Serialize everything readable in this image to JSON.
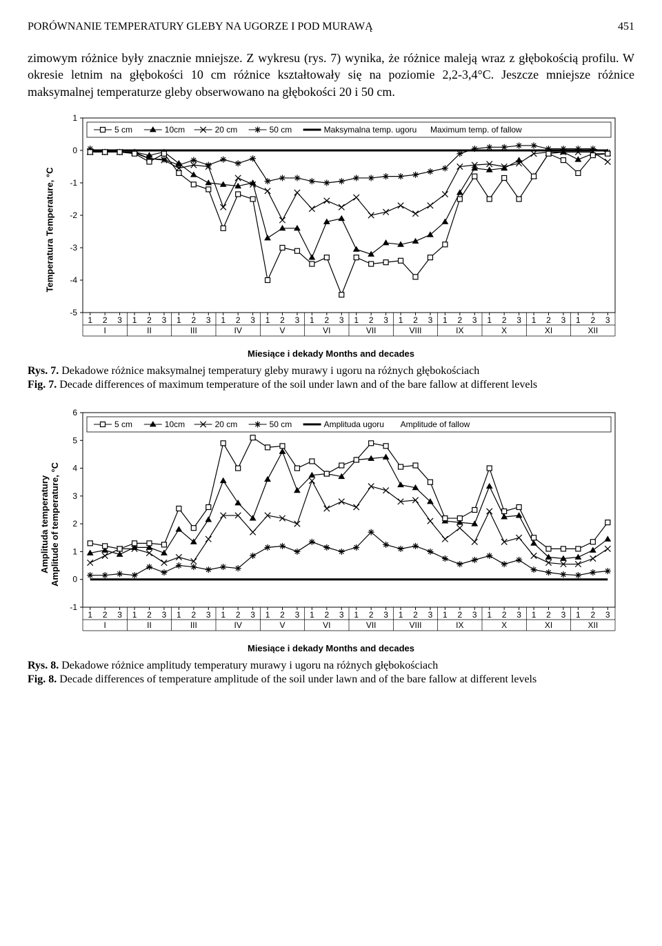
{
  "header": {
    "running_title": "PORÓWNANIE TEMPERATURY GLEBY NA UGORZE I POD MURAWĄ",
    "page_number": "451"
  },
  "paragraph": "zimowym różnice były znacznie mniejsze. Z wykresu (rys. 7) wynika, że różnice maleją wraz z głębokością profilu. W okresie letnim na głębokości 10 cm różnice kształtowały się na poziomie 2,2-3,4°C. Jeszcze mniejsze różnice maksymalnej temperaturze gleby obserwowano na głębokości 20 i 50 cm.",
  "chart7": {
    "type": "line",
    "y_label": "Temperatura Temperature, °C",
    "x_label": "Miesiące i dekady Months and decades",
    "ylim": [
      -5,
      1
    ],
    "ytick_step": 1,
    "months": [
      "I",
      "II",
      "III",
      "IV",
      "V",
      "VI",
      "VII",
      "VIII",
      "IX",
      "X",
      "XI",
      "XII"
    ],
    "decades": [
      "1",
      "2",
      "3"
    ],
    "legend": [
      {
        "label": "5 cm",
        "marker": "square",
        "color": "#000000"
      },
      {
        "label": "10cm",
        "marker": "triangle",
        "color": "#000000"
      },
      {
        "label": "20 cm",
        "marker": "x",
        "color": "#000000"
      },
      {
        "label": "50 cm",
        "marker": "star",
        "color": "#000000"
      },
      {
        "label": "Maksymalna temp. ugoru",
        "marker": "boldline",
        "color": "#000000"
      },
      {
        "label": "Maximum temp. of fallow",
        "marker": "none",
        "color": "#000000"
      }
    ],
    "line_width": 1.2,
    "bold_line_width": 3,
    "background_color": "#ffffff",
    "border_color": "#000000",
    "series": {
      "s5cm": [
        -0.05,
        -0.05,
        -0.05,
        -0.1,
        -0.35,
        -0.1,
        -0.7,
        -1.05,
        -1.2,
        -2.4,
        -1.35,
        -1.5,
        -4.0,
        -3.0,
        -3.1,
        -3.5,
        -3.3,
        -4.45,
        -3.3,
        -3.5,
        -3.45,
        -3.4,
        -3.9,
        -3.3,
        -2.9,
        -1.5,
        -0.8,
        -1.5,
        -0.85,
        -1.5,
        -0.8,
        -0.1,
        -0.3,
        -0.7,
        -0.15,
        -0.1
      ],
      "s10cm": [
        -0.05,
        -0.05,
        -0.05,
        -0.05,
        -0.15,
        -0.05,
        -0.4,
        -0.75,
        -1.0,
        -1.05,
        -1.1,
        -1.0,
        -2.7,
        -2.4,
        -2.4,
        -3.3,
        -2.2,
        -2.1,
        -3.05,
        -3.2,
        -2.85,
        -2.9,
        -2.8,
        -2.6,
        -2.2,
        -1.3,
        -0.55,
        -0.6,
        -0.55,
        -0.3,
        -0.8,
        -0.1,
        -0.05,
        -0.28,
        -0.1,
        -0.1
      ],
      "s20cm": [
        -0.05,
        -0.05,
        -0.05,
        -0.08,
        -0.25,
        -0.3,
        -0.55,
        -0.45,
        -0.5,
        -1.75,
        -0.85,
        -1.05,
        -1.25,
        -2.15,
        -1.3,
        -1.8,
        -1.55,
        -1.75,
        -1.45,
        -2.0,
        -1.9,
        -1.7,
        -1.95,
        -1.7,
        -1.35,
        -0.5,
        -0.45,
        -0.42,
        -0.5,
        -0.4,
        -0.1,
        -0.05,
        -0.05,
        -0.05,
        -0.05,
        -0.35
      ],
      "s50cm": [
        0.05,
        -0.05,
        -0.05,
        -0.05,
        -0.25,
        -0.28,
        -0.45,
        -0.3,
        -0.45,
        -0.28,
        -0.4,
        -0.25,
        -0.95,
        -0.85,
        -0.85,
        -0.95,
        -1.0,
        -0.95,
        -0.85,
        -0.85,
        -0.8,
        -0.8,
        -0.75,
        -0.65,
        -0.55,
        -0.1,
        0.05,
        0.1,
        0.1,
        0.15,
        0.15,
        0.05,
        0.05,
        0.05,
        0.05,
        -0.05
      ],
      "ugoru": [
        0,
        0,
        0,
        0,
        0,
        0,
        0,
        0,
        0,
        0,
        0,
        0,
        0,
        0,
        0,
        0,
        0,
        0,
        0,
        0,
        0,
        0,
        0,
        0,
        0,
        0,
        0,
        0,
        0,
        0,
        0,
        0,
        0,
        0,
        0,
        0
      ]
    }
  },
  "caption7": {
    "rys": "Rys. 7.",
    "rys_text": " Dekadowe różnice maksymalnej temperatury gleby murawy i ugoru na różnych głębokościach",
    "fig": "Fig. 7.",
    "fig_text": " Decade differences of maximum temperature of the soil under lawn and of the bare fallow at different levels"
  },
  "chart8": {
    "type": "line",
    "y_label": "Amplituda temperatury\nAmplitude of temperature, °C",
    "x_label": "Miesiące i dekady Months and decades",
    "ylim": [
      -1,
      6
    ],
    "ytick_step": 1,
    "months": [
      "I",
      "II",
      "III",
      "IV",
      "V",
      "VI",
      "VII",
      "VIII",
      "IX",
      "X",
      "XI",
      "XII"
    ],
    "decades": [
      "1",
      "2",
      "3"
    ],
    "legend": [
      {
        "label": "5 cm",
        "marker": "square",
        "color": "#000000"
      },
      {
        "label": "10cm",
        "marker": "triangle",
        "color": "#000000"
      },
      {
        "label": "20 cm",
        "marker": "x",
        "color": "#000000"
      },
      {
        "label": "50 cm",
        "marker": "star",
        "color": "#000000"
      },
      {
        "label": "Amplituda ugoru",
        "marker": "boldline",
        "color": "#000000"
      },
      {
        "label": "Amplitude of fallow",
        "marker": "none",
        "color": "#000000"
      }
    ],
    "line_width": 1.2,
    "bold_line_width": 3,
    "background_color": "#ffffff",
    "border_color": "#000000",
    "series": {
      "s5cm": [
        1.3,
        1.2,
        1.1,
        1.3,
        1.3,
        1.25,
        2.55,
        1.85,
        2.6,
        4.9,
        4.0,
        5.1,
        4.75,
        4.8,
        4.0,
        4.25,
        3.8,
        4.1,
        4.3,
        4.9,
        4.8,
        4.05,
        4.1,
        3.5,
        2.2,
        2.2,
        2.5,
        4.0,
        2.45,
        2.6,
        1.5,
        1.1,
        1.1,
        1.1,
        1.35,
        2.05
      ],
      "s10cm": [
        0.95,
        1.05,
        0.9,
        1.15,
        1.15,
        0.95,
        1.8,
        1.35,
        2.15,
        3.55,
        2.75,
        2.2,
        3.6,
        4.6,
        3.2,
        3.75,
        3.8,
        3.7,
        4.3,
        4.35,
        4.4,
        3.4,
        3.3,
        2.8,
        2.1,
        2.05,
        2.0,
        3.35,
        2.25,
        2.3,
        1.3,
        0.8,
        0.75,
        0.8,
        1.05,
        1.45
      ],
      "s20cm": [
        0.6,
        0.85,
        1.1,
        1.1,
        0.95,
        0.6,
        0.8,
        0.65,
        1.45,
        2.3,
        2.3,
        1.7,
        2.3,
        2.2,
        2.0,
        3.55,
        2.55,
        2.8,
        2.6,
        3.35,
        3.2,
        2.8,
        2.85,
        2.1,
        1.45,
        1.85,
        1.35,
        2.45,
        1.35,
        1.5,
        0.85,
        0.6,
        0.55,
        0.55,
        0.75,
        1.1
      ],
      "s50cm": [
        0.15,
        0.15,
        0.2,
        0.15,
        0.45,
        0.25,
        0.5,
        0.45,
        0.35,
        0.45,
        0.4,
        0.85,
        1.15,
        1.2,
        1.0,
        1.35,
        1.15,
        1.0,
        1.15,
        1.7,
        1.25,
        1.1,
        1.2,
        1.0,
        0.75,
        0.55,
        0.7,
        0.85,
        0.55,
        0.7,
        0.35,
        0.25,
        0.18,
        0.15,
        0.25,
        0.3
      ],
      "ugoru": [
        0,
        0,
        0,
        0,
        0,
        0,
        0,
        0,
        0,
        0,
        0,
        0,
        0,
        0,
        0,
        0,
        0,
        0,
        0,
        0,
        0,
        0,
        0,
        0,
        0,
        0,
        0,
        0,
        0,
        0,
        0,
        0,
        0,
        0,
        0,
        0
      ]
    }
  },
  "caption8": {
    "rys": "Rys. 8.",
    "rys_text": " Dekadowe różnice amplitudy temperatury murawy i ugoru na różnych głębokościach",
    "fig": "Fig. 8.",
    "fig_text": " Decade differences of temperature amplitude of the soil under lawn and of the bare fallow at different levels"
  }
}
